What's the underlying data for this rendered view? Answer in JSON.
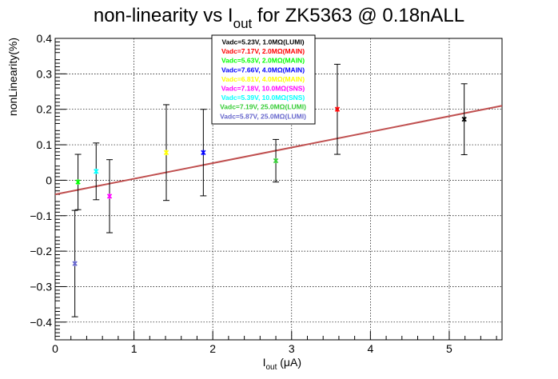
{
  "chart_data": {
    "type": "scatter",
    "title": "non-linearity vs I",
    "title_sub": "out",
    "title_rest": " for ZK5363 @ 0.18nALL",
    "xlabel": "I",
    "xlabel_sub": "out",
    "xlabel_rest": " (μA)",
    "ylabel": "nonLinearity(%)",
    "xlim": [
      0,
      5.67
    ],
    "ylim": [
      -0.45,
      0.4
    ],
    "xticks": [
      0,
      1,
      2,
      3,
      4,
      5
    ],
    "yticks": [
      -0.4,
      -0.3,
      -0.2,
      -0.1,
      0,
      0.1,
      0.2,
      0.3,
      0.4
    ],
    "xtick_labels": [
      "0",
      "1",
      "2",
      "3",
      "4",
      "5"
    ],
    "ytick_labels": [
      "−0.4",
      "−0.3",
      "−0.2",
      "−0.1",
      "0",
      "0.1",
      "0.2",
      "0.3",
      "0.4"
    ],
    "grid": true,
    "legend_position": "top-center",
    "fit_line": {
      "x": [
        0,
        5.67
      ],
      "y": [
        -0.04,
        0.21
      ],
      "color": "#c05050"
    },
    "series": [
      {
        "name": "Vadc=5.23V, 1.0MΩ(LUMI)",
        "color": "#000000",
        "x": 5.19,
        "y": 0.172,
        "err": 0.1
      },
      {
        "name": "Vadc=7.17V, 2.0MΩ(MAIN)",
        "color": "#ff0000",
        "x": 3.58,
        "y": 0.2,
        "err": 0.127
      },
      {
        "name": "Vadc=5.63V, 2.0MΩ(MAIN)",
        "color": "#00ff00",
        "x": 0.29,
        "y": -0.005,
        "err": 0.078
      },
      {
        "name": "Vadc=7.66V, 4.0MΩ(MAIN)",
        "color": "#0000ff",
        "x": 1.88,
        "y": 0.078,
        "err": 0.122
      },
      {
        "name": "Vadc=6.81V, 4.0MΩ(MAIN)",
        "color": "#ffff00",
        "x": 1.41,
        "y": 0.078,
        "err": 0.135
      },
      {
        "name": "Vadc=7.18V, 10.0MΩ(SNS)",
        "color": "#ff00ff",
        "x": 0.69,
        "y": -0.045,
        "err": 0.103
      },
      {
        "name": "Vadc=5.39V, 10.0MΩ(SNS)",
        "color": "#00ffff",
        "x": 0.52,
        "y": 0.025,
        "err": 0.08
      },
      {
        "name": "Vadc=7.19V, 25.0MΩ(LUMI)",
        "color": "#33cc33",
        "x": 2.8,
        "y": 0.055,
        "err": 0.06
      },
      {
        "name": "Vadc=5.87V, 25.0MΩ(LUMI)",
        "color": "#6666cc",
        "x": 0.25,
        "y": -0.235,
        "err": 0.15
      }
    ]
  }
}
